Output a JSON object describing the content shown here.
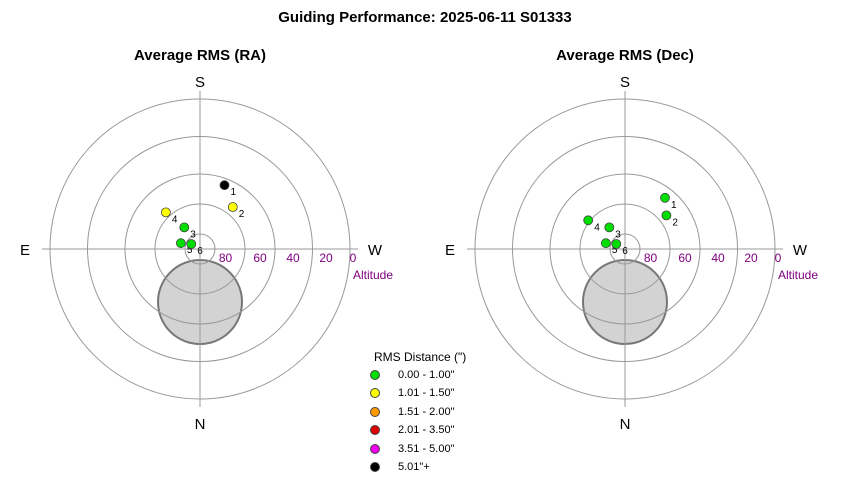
{
  "title": "Guiding Performance: 2025-06-11 S01333",
  "chart_data": [
    {
      "type": "scatter",
      "subtype": "polar",
      "title": "Average RMS (RA)",
      "directions": {
        "top": "S",
        "bottom": "N",
        "left": "E",
        "right": "W"
      },
      "radial_axis_label": "Altitude",
      "radial_ticks": [
        "80",
        "60",
        "40",
        "20",
        "0"
      ],
      "points": [
        {
          "label": "1",
          "azimuth": 339,
          "altitude": 49,
          "color": "#000000"
        },
        {
          "label": "2",
          "azimuth": 322,
          "altitude": 58,
          "color": "#ffff00"
        },
        {
          "label": "3",
          "azimuth": 36,
          "altitude": 74,
          "color": "#00dd00"
        },
        {
          "label": "4",
          "azimuth": 43,
          "altitude": 60,
          "color": "#ffff00"
        },
        {
          "label": "5",
          "azimuth": 73,
          "altitude": 78,
          "color": "#00dd00"
        },
        {
          "label": "6",
          "azimuth": 60,
          "altitude": 84,
          "color": "#00dd00"
        }
      ]
    },
    {
      "type": "scatter",
      "subtype": "polar",
      "title": "Average RMS (Dec)",
      "directions": {
        "top": "S",
        "bottom": "N",
        "left": "E",
        "right": "W"
      },
      "radial_axis_label": "Altitude",
      "radial_ticks": [
        "80",
        "60",
        "40",
        "20",
        "0"
      ],
      "points": [
        {
          "label": "1",
          "azimuth": 322,
          "altitude": 51,
          "color": "#00dd00"
        },
        {
          "label": "2",
          "azimuth": 309,
          "altitude": 58,
          "color": "#00dd00"
        },
        {
          "label": "3",
          "azimuth": 36,
          "altitude": 74,
          "color": "#00dd00"
        },
        {
          "label": "4",
          "azimuth": 52,
          "altitude": 62,
          "color": "#00dd00"
        },
        {
          "label": "5",
          "azimuth": 73,
          "altitude": 78,
          "color": "#00dd00"
        },
        {
          "label": "6",
          "azimuth": 60,
          "altitude": 84,
          "color": "#00dd00"
        }
      ]
    }
  ],
  "legend": {
    "title": "RMS Distance (\")",
    "items": [
      {
        "label": "0.00 - 1.00\"",
        "color": "#00dd00"
      },
      {
        "label": "1.01 - 1.50\"",
        "color": "#ffff00"
      },
      {
        "label": "1.51 - 2.00\"",
        "color": "#ff9900"
      },
      {
        "label": "2.01 - 3.50\"",
        "color": "#dd0000"
      },
      {
        "label": "3.51 - 5.00\"",
        "color": "#ee00ee"
      },
      {
        "label": "5.01\"+",
        "color": "#000000"
      }
    ]
  },
  "colors": {
    "altitude_labels": "#800080",
    "obstruction_fill": "#d3d3d3"
  }
}
